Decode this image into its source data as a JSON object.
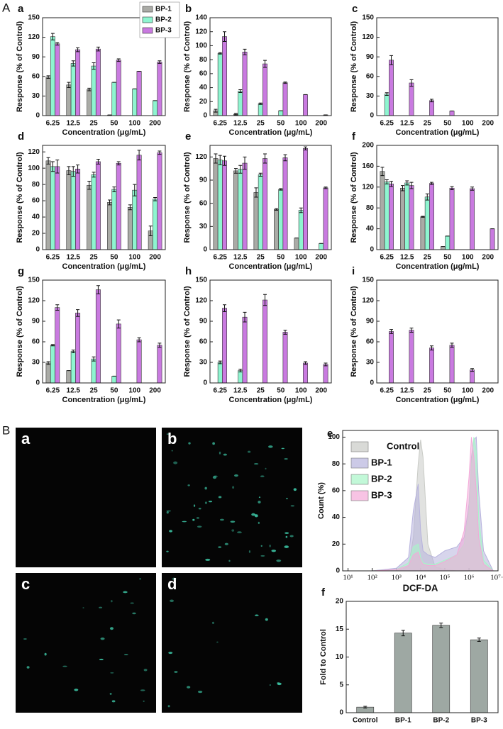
{
  "panel_groups": [
    "A",
    "B"
  ],
  "micrographs": [
    {
      "label": "a"
    },
    {
      "label": "b"
    },
    {
      "label": "c"
    },
    {
      "label": "d"
    }
  ],
  "chart_data": [
    {
      "type": "bar",
      "label": "a",
      "categories": [
        "6.25",
        "12.5",
        "25",
        "50",
        "100",
        "200"
      ],
      "x_label": "Concentration (μg/mL)",
      "y_label": "Response (% of Control)",
      "ylim": [
        0,
        150
      ],
      "yticks": [
        0,
        30,
        60,
        90,
        120,
        150
      ],
      "legend": "upper right",
      "series": [
        {
          "name": "BP-1",
          "color": "#aaaba6",
          "values": [
            59,
            47,
            40,
            1,
            0,
            0
          ],
          "errors": [
            2,
            4,
            2,
            0,
            0,
            0
          ]
        },
        {
          "name": "BP-2",
          "color": "#8ef5d0",
          "values": [
            121,
            80,
            76,
            51,
            41,
            23
          ],
          "errors": [
            5,
            4,
            5,
            0,
            0,
            0
          ]
        },
        {
          "name": "BP-3",
          "color": "#c97ae0",
          "values": [
            110,
            101,
            102,
            85,
            68,
            82
          ],
          "errors": [
            2,
            3,
            3,
            2,
            0,
            2
          ]
        }
      ]
    },
    {
      "type": "bar",
      "label": "b",
      "categories": [
        "6.25",
        "12.5",
        "25",
        "50",
        "100",
        "200"
      ],
      "x_label": "Concentration (μg/mL)",
      "y_label": "Response (% of Control)",
      "ylim": [
        0,
        140
      ],
      "yticks": [
        0,
        20,
        40,
        60,
        80,
        100,
        120,
        140
      ],
      "series": [
        {
          "color": "#aaaba6",
          "values": [
            7,
            2,
            0,
            0,
            0,
            0
          ],
          "errors": [
            2,
            1,
            0,
            0,
            0,
            0
          ]
        },
        {
          "color": "#8ef5d0",
          "values": [
            89,
            35,
            17,
            7,
            0,
            0
          ],
          "errors": [
            1,
            2,
            1,
            0,
            0,
            0
          ]
        },
        {
          "color": "#c97ae0",
          "values": [
            113,
            91,
            74,
            47,
            30,
            1
          ],
          "errors": [
            7,
            4,
            5,
            1,
            0,
            0
          ]
        }
      ]
    },
    {
      "type": "bar",
      "label": "c",
      "categories": [
        "6.25",
        "12.5",
        "25",
        "50",
        "100",
        "200"
      ],
      "x_label": "Concentration (μg/mL)",
      "y_label": "Response (% of Control)",
      "ylim": [
        0,
        150
      ],
      "yticks": [
        0,
        30,
        60,
        90,
        120,
        150
      ],
      "series": [
        {
          "color": "#aaaba6",
          "values": [
            0,
            0,
            0,
            0,
            0,
            0
          ],
          "errors": [
            0,
            0,
            0,
            0,
            0,
            0
          ]
        },
        {
          "color": "#8ef5d0",
          "values": [
            33,
            0,
            0,
            0,
            0,
            0
          ],
          "errors": [
            2,
            0,
            0,
            0,
            0,
            0
          ]
        },
        {
          "color": "#c97ae0",
          "values": [
            85,
            50,
            23,
            7,
            0,
            0
          ],
          "errors": [
            7,
            5,
            2,
            0,
            0,
            0
          ]
        }
      ]
    },
    {
      "type": "bar",
      "label": "d",
      "categories": [
        "6.25",
        "12.5",
        "25",
        "50",
        "100",
        "200"
      ],
      "x_label": "Concentration (μg/mL)",
      "y_label": "Response (% of Control)",
      "ylim": [
        0,
        128
      ],
      "yticks": [
        0,
        20,
        40,
        60,
        80,
        100,
        120
      ],
      "series": [
        {
          "color": "#aaaba6",
          "values": [
            109,
            97,
            79,
            58,
            52,
            23
          ],
          "errors": [
            4,
            5,
            5,
            3,
            3,
            6
          ]
        },
        {
          "color": "#8ef5d0",
          "values": [
            102,
            96,
            92,
            74,
            73,
            62
          ],
          "errors": [
            6,
            6,
            3,
            3,
            7,
            2
          ]
        },
        {
          "color": "#c97ae0",
          "values": [
            102,
            99,
            108,
            106,
            116,
            119
          ],
          "errors": [
            8,
            5,
            3,
            2,
            6,
            2
          ]
        }
      ]
    },
    {
      "type": "bar",
      "label": "e",
      "categories": [
        "6.25",
        "12.5",
        "25",
        "50",
        "100",
        "200"
      ],
      "x_label": "Concentration (μg/mL)",
      "y_label": "Response (% of Control)",
      "ylim": [
        0,
        135
      ],
      "yticks": [
        0,
        30,
        60,
        90,
        120
      ],
      "series": [
        {
          "color": "#aaaba6",
          "values": [
            118,
            102,
            74,
            52,
            15,
            0
          ],
          "errors": [
            6,
            3,
            6,
            1,
            0,
            0
          ]
        },
        {
          "color": "#8ef5d0",
          "values": [
            116,
            104,
            97,
            78,
            51,
            8
          ],
          "errors": [
            6,
            5,
            2,
            1,
            3,
            0
          ]
        },
        {
          "color": "#c97ae0",
          "values": [
            115,
            112,
            118,
            119,
            131,
            80
          ],
          "errors": [
            6,
            8,
            6,
            4,
            2,
            1
          ]
        }
      ]
    },
    {
      "type": "bar",
      "label": "f",
      "categories": [
        "6.25",
        "12.5",
        "25",
        "50",
        "100",
        "200"
      ],
      "x_label": "Concentration (μg/mL)",
      "y_label": "Response (% of Control)",
      "ylim": [
        0,
        200
      ],
      "yticks": [
        0,
        40,
        80,
        120,
        160,
        200
      ],
      "series": [
        {
          "color": "#aaaba6",
          "values": [
            150,
            118,
            63,
            6,
            0,
            0
          ],
          "errors": [
            8,
            5,
            1,
            0,
            0,
            0
          ]
        },
        {
          "color": "#8ef5d0",
          "values": [
            130,
            128,
            101,
            26,
            0,
            0
          ],
          "errors": [
            4,
            4,
            6,
            0,
            0,
            0
          ]
        },
        {
          "color": "#c97ae0",
          "values": [
            126,
            123,
            127,
            118,
            117,
            40
          ],
          "errors": [
            5,
            6,
            2,
            3,
            3,
            0
          ]
        }
      ]
    },
    {
      "type": "bar",
      "label": "g",
      "categories": [
        "6.25",
        "12.5",
        "25",
        "50",
        "100",
        "200"
      ],
      "x_label": "Concentration (μg/mL)",
      "y_label": "Response (% of Control)",
      "ylim": [
        0,
        150
      ],
      "yticks": [
        0,
        30,
        60,
        90,
        120,
        150
      ],
      "series": [
        {
          "color": "#aaaba6",
          "values": [
            29,
            18,
            0,
            0,
            0,
            0
          ],
          "errors": [
            2,
            0,
            0,
            0,
            0,
            0
          ]
        },
        {
          "color": "#8ef5d0",
          "values": [
            55,
            46,
            35,
            10,
            0,
            0
          ],
          "errors": [
            1,
            2,
            3,
            0,
            0,
            0
          ]
        },
        {
          "color": "#c97ae0",
          "values": [
            110,
            102,
            136,
            86,
            63,
            55
          ],
          "errors": [
            4,
            5,
            6,
            6,
            3,
            3
          ]
        }
      ]
    },
    {
      "type": "bar",
      "label": "h",
      "categories": [
        "6.25",
        "12.5",
        "25",
        "50",
        "100",
        "200"
      ],
      "x_label": "Concentration (μg/mL)",
      "y_label": "Response (% of Control)",
      "ylim": [
        0,
        150
      ],
      "yticks": [
        0,
        30,
        60,
        90,
        120,
        150
      ],
      "series": [
        {
          "color": "#aaaba6",
          "values": [
            0,
            0,
            0,
            0,
            0,
            0
          ],
          "errors": [
            0,
            0,
            0,
            0,
            0,
            0
          ]
        },
        {
          "color": "#8ef5d0",
          "values": [
            30,
            18,
            0,
            0,
            0,
            0
          ],
          "errors": [
            2,
            2,
            0,
            0,
            0,
            0
          ]
        },
        {
          "color": "#c97ae0",
          "values": [
            109,
            96,
            121,
            74,
            29,
            27
          ],
          "errors": [
            5,
            7,
            8,
            3,
            2,
            2
          ]
        }
      ]
    },
    {
      "type": "bar",
      "label": "i",
      "categories": [
        "6.25",
        "12.5",
        "25",
        "50",
        "100",
        "200"
      ],
      "x_label": "Concentration (μg/mL)",
      "y_label": "Response (% of Control)",
      "ylim": [
        0,
        150
      ],
      "yticks": [
        0,
        30,
        60,
        90,
        120,
        150
      ],
      "series": [
        {
          "color": "#aaaba6",
          "values": [
            0,
            0,
            0,
            0,
            0,
            0
          ],
          "errors": [
            0,
            0,
            0,
            0,
            0,
            0
          ]
        },
        {
          "color": "#8ef5d0",
          "values": [
            0,
            0,
            0,
            0,
            0,
            0
          ],
          "errors": [
            0,
            0,
            0,
            0,
            0,
            0
          ]
        },
        {
          "color": "#c97ae0",
          "values": [
            75,
            77,
            51,
            55,
            19,
            0
          ],
          "errors": [
            3,
            3,
            3,
            3,
            2,
            0
          ]
        }
      ]
    },
    {
      "type": "area",
      "label": "e",
      "x_label": "DCF-DA",
      "y_label": "Count (%)",
      "xscale": "log",
      "xlim": [
        6,
        15848932
      ],
      "xticks": [
        {
          "value": 10,
          "label": "10¹"
        },
        {
          "value": 100,
          "label": "10²"
        },
        {
          "value": 1000,
          "label": "10³"
        },
        {
          "value": 10000,
          "label": "10⁴"
        },
        {
          "value": 100000,
          "label": "10⁵"
        },
        {
          "value": 1000000,
          "label": "10⁶"
        },
        {
          "value": 15848932,
          "label": "10⁷·²"
        }
      ],
      "ylim": [
        0,
        105
      ],
      "yticks": [
        0,
        20,
        40,
        60,
        80,
        100
      ],
      "legend": "upper left",
      "x": [
        10,
        100,
        1000,
        3162,
        5012,
        7943,
        10000,
        12589,
        19953,
        39811,
        100000,
        316228,
        630957,
        1000000,
        1258925,
        1584893,
        1995262,
        2511886,
        3981072,
        10000000,
        15848932
      ],
      "series": [
        {
          "name": "Control",
          "color": "#c9cbc6",
          "values": [
            0,
            0,
            0,
            3,
            25,
            80,
            98,
            85,
            20,
            3,
            1,
            0,
            0,
            0,
            0,
            0,
            0,
            0,
            0,
            0,
            0
          ]
        },
        {
          "name": "BP-1",
          "color": "#b7b3dd",
          "values": [
            0,
            0,
            2,
            10,
            45,
            65,
            30,
            15,
            12,
            10,
            15,
            18,
            25,
            50,
            85,
            98,
            100,
            60,
            15,
            0,
            0
          ]
        },
        {
          "name": "BP-2",
          "color": "#a8f5c8",
          "values": [
            0,
            0,
            1,
            6,
            18,
            20,
            10,
            6,
            5,
            5,
            8,
            12,
            20,
            45,
            80,
            100,
            90,
            40,
            8,
            0,
            0
          ]
        },
        {
          "name": "BP-3",
          "color": "#f3a9d8",
          "values": [
            0,
            0,
            1,
            4,
            12,
            14,
            8,
            5,
            4,
            4,
            7,
            12,
            30,
            70,
            100,
            85,
            60,
            25,
            5,
            0,
            0
          ]
        }
      ]
    },
    {
      "type": "bar",
      "label": "f",
      "categories": [
        "Control",
        "BP-1",
        "BP-2",
        "BP-3"
      ],
      "y_label": "Fold to Control",
      "ylim": [
        0,
        20
      ],
      "yticks": [
        0,
        5,
        10,
        15,
        20
      ],
      "series": [
        {
          "color": "#9ea8a3",
          "values": [
            1,
            14.3,
            15.7,
            13.1
          ],
          "errors": [
            0.15,
            0.5,
            0.4,
            0.3
          ]
        }
      ]
    }
  ]
}
